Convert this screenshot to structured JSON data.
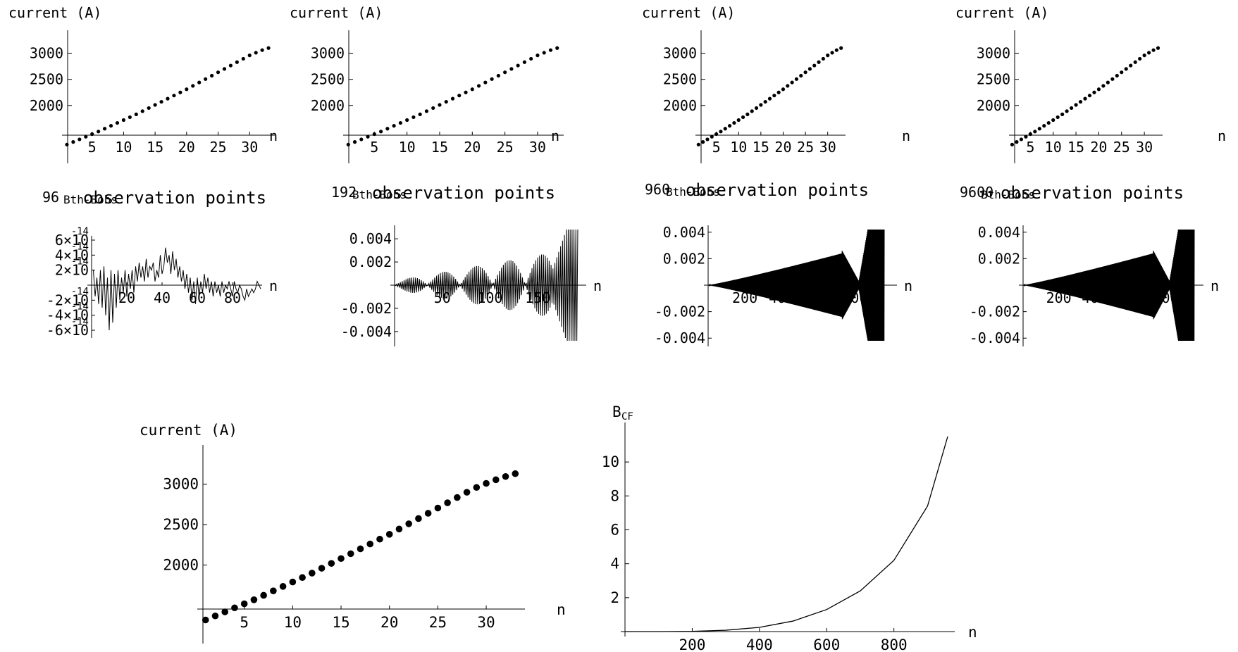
{
  "chart_data": [
    {
      "type": "scatter",
      "title": "",
      "ylabel": "current (A)",
      "xlabel": "n",
      "xticks": [
        "5",
        "10",
        "15",
        "20",
        "25",
        "30"
      ],
      "yticks": [
        "2000",
        "2500",
        "3000"
      ],
      "xlim": [
        0,
        34
      ],
      "ylim": [
        1220,
        3400
      ],
      "x": [
        1,
        2,
        3,
        4,
        5,
        6,
        7,
        8,
        9,
        10,
        11,
        12,
        13,
        14,
        15,
        16,
        17,
        18,
        19,
        20,
        21,
        22,
        23,
        24,
        25,
        26,
        27,
        28,
        29,
        30,
        31,
        32,
        33
      ],
      "y": [
        1250,
        1300,
        1350,
        1400,
        1450,
        1500,
        1555,
        1610,
        1665,
        1720,
        1775,
        1830,
        1890,
        1950,
        2010,
        2070,
        2130,
        2190,
        2250,
        2310,
        2375,
        2440,
        2505,
        2570,
        2635,
        2700,
        2765,
        2830,
        2895,
        2960,
        3010,
        3060,
        3100
      ]
    },
    {
      "type": "scatter",
      "title": "",
      "ylabel": "current (A)",
      "xlabel": "n",
      "xticks": [
        "5",
        "10",
        "15",
        "20",
        "25",
        "30"
      ],
      "yticks": [
        "2000",
        "2500",
        "3000"
      ],
      "xlim": [
        0,
        34
      ],
      "ylim": [
        1220,
        3400
      ],
      "x": [
        1,
        2,
        3,
        4,
        5,
        6,
        7,
        8,
        9,
        10,
        11,
        12,
        13,
        14,
        15,
        16,
        17,
        18,
        19,
        20,
        21,
        22,
        23,
        24,
        25,
        26,
        27,
        28,
        29,
        30,
        31,
        32,
        33
      ],
      "y": [
        1250,
        1300,
        1350,
        1400,
        1450,
        1500,
        1555,
        1610,
        1665,
        1720,
        1775,
        1830,
        1890,
        1950,
        2010,
        2070,
        2130,
        2190,
        2250,
        2310,
        2375,
        2440,
        2505,
        2570,
        2635,
        2700,
        2765,
        2830,
        2895,
        2960,
        3010,
        3060,
        3100
      ]
    },
    {
      "type": "scatter",
      "title": "",
      "ylabel": "current (A)",
      "xlabel": "n",
      "xticks": [
        "5",
        "10",
        "15",
        "20",
        "25",
        "30"
      ],
      "yticks": [
        "2000",
        "2500",
        "3000"
      ],
      "xlim": [
        0,
        34
      ],
      "ylim": [
        1220,
        3400
      ],
      "x": [
        1,
        2,
        3,
        4,
        5,
        6,
        7,
        8,
        9,
        10,
        11,
        12,
        13,
        14,
        15,
        16,
        17,
        18,
        19,
        20,
        21,
        22,
        23,
        24,
        25,
        26,
        27,
        28,
        29,
        30,
        31,
        32,
        33
      ],
      "y": [
        1250,
        1300,
        1350,
        1400,
        1450,
        1500,
        1555,
        1610,
        1665,
        1720,
        1775,
        1830,
        1890,
        1950,
        2010,
        2070,
        2130,
        2190,
        2250,
        2310,
        2375,
        2440,
        2505,
        2570,
        2635,
        2700,
        2765,
        2830,
        2895,
        2960,
        3010,
        3060,
        3100
      ]
    },
    {
      "type": "scatter",
      "title": "",
      "ylabel": "current (A)",
      "xlabel": "n",
      "xticks": [
        "5",
        "10",
        "15",
        "20",
        "25",
        "30"
      ],
      "yticks": [
        "2000",
        "2500",
        "3000"
      ],
      "xlim": [
        0,
        34
      ],
      "ylim": [
        1220,
        3400
      ],
      "x": [
        1,
        2,
        3,
        4,
        5,
        6,
        7,
        8,
        9,
        10,
        11,
        12,
        13,
        14,
        15,
        16,
        17,
        18,
        19,
        20,
        21,
        22,
        23,
        24,
        25,
        26,
        27,
        28,
        29,
        30,
        31,
        32,
        33
      ],
      "y": [
        1250,
        1300,
        1350,
        1400,
        1450,
        1500,
        1555,
        1610,
        1665,
        1720,
        1775,
        1830,
        1890,
        1950,
        2010,
        2070,
        2130,
        2190,
        2250,
        2310,
        2375,
        2440,
        2505,
        2570,
        2635,
        2700,
        2765,
        2830,
        2895,
        2960,
        3010,
        3060,
        3100
      ]
    },
    {
      "type": "line",
      "title": "observation points",
      "label_number": "96",
      "ylabel": "Bth-Bobs",
      "xlabel": "n",
      "xticks": [
        "20",
        "40",
        "60",
        "80"
      ],
      "yticks": [
        "6×10",
        "4×10",
        "2×10",
        "-2×10",
        "-4×10",
        "-6×10"
      ],
      "ytick_exponent": "-14",
      "xlim": [
        0,
        96
      ],
      "ylim": [
        -6e-14,
        6e-14
      ],
      "n_points": 96,
      "y": [
        2e-14,
        -1.5e-14,
        1e-14,
        -2.5e-14,
        2e-14,
        -3e-14,
        2.5e-14,
        -4e-14,
        1e-14,
        -6e-14,
        2e-14,
        -5e-14,
        1.5e-14,
        -3e-14,
        2e-14,
        -2e-14,
        1e-14,
        -1e-14,
        2e-14,
        -1.5e-14,
        1.5e-14,
        -5e-15,
        2e-14,
        -1e-14,
        2.5e-14,
        5e-15,
        3e-14,
        1e-14,
        2.5e-14,
        5e-15,
        3.5e-14,
        1e-14,
        2.5e-14,
        2e-14,
        3e-14,
        5e-15,
        2e-14,
        1e-14,
        4e-14,
        1.5e-14,
        2.5e-14,
        5e-14,
        3e-14,
        4e-14,
        1.5e-14,
        4.5e-14,
        2e-14,
        3.5e-14,
        1e-14,
        2.5e-14,
        5e-15,
        2e-14,
        -5e-15,
        1.5e-14,
        -1e-14,
        1e-14,
        -2e-14,
        5e-15,
        -2.5e-14,
        1e-14,
        -1.5e-14,
        5e-15,
        -1e-14,
        1.5e-14,
        -5e-15,
        1e-14,
        -1e-14,
        5e-15,
        -1.5e-14,
        5e-15,
        -1e-14,
        0.0,
        -1.5e-14,
        5e-15,
        -1e-14,
        0.0,
        -5e-15,
        5e-15,
        -5e-15,
        -1.5e-14,
        5e-15,
        -5e-15,
        -1e-14,
        0.0,
        -5e-15,
        -1.5e-14,
        -2e-14,
        -5e-15,
        -1.5e-14,
        -1e-14,
        -5e-15,
        -1e-14,
        -5e-15,
        5e-15,
        0.0,
        -5e-15
      ]
    },
    {
      "type": "line",
      "title": "observation points",
      "label_number": "192",
      "ylabel": "Bth-Bobs",
      "xlabel": "n",
      "xticks": [
        "50",
        "100",
        "150"
      ],
      "yticks": [
        "0.004",
        "0.002",
        "-0.002",
        "-0.004"
      ],
      "xlim": [
        0,
        192
      ],
      "ylim": [
        -0.0048,
        0.0048
      ],
      "n_points": 192,
      "envelope": "beating oscillation with growing amplitude, max ≈0.0048 near n≈180"
    },
    {
      "type": "line",
      "title": "observation points",
      "label_number": "960",
      "ylabel": "Bth-Bobs",
      "xlabel": "n",
      "xticks": [
        "200",
        "400",
        "600",
        "800"
      ],
      "yticks": [
        "0.004",
        "0.002",
        "-0.002",
        "-0.004"
      ],
      "xlim": [
        0,
        960
      ],
      "ylim": [
        -0.0042,
        0.0042
      ],
      "n_points": 960,
      "envelope": "amplitude grows to ≈0.0024 near n≈730, dips near n≈820, then reaches ≈0.0042 near n≈900"
    },
    {
      "type": "line",
      "title": "observation points",
      "label_number": "9600",
      "ylabel": "Bth-Bobs",
      "xlabel": "n",
      "xticks": [
        "200",
        "400",
        "600",
        "800"
      ],
      "yticks": [
        "0.004",
        "0.002",
        "-0.002",
        "-0.004"
      ],
      "xlim": [
        0,
        960
      ],
      "ylim": [
        -0.0042,
        0.0042
      ],
      "envelope": "amplitude grows to ≈0.0024 near n≈730, dips near n≈820, then reaches ≈0.0042 near n≈900"
    },
    {
      "type": "scatter",
      "title": "",
      "ylabel": "current (A)",
      "xlabel": "n",
      "xticks": [
        "5",
        "10",
        "15",
        "20",
        "25",
        "30"
      ],
      "yticks": [
        "2000",
        "2500",
        "3000"
      ],
      "xlim": [
        0,
        34
      ],
      "ylim": [
        1250,
        3450
      ],
      "x": [
        1,
        2,
        3,
        4,
        5,
        6,
        7,
        8,
        9,
        10,
        11,
        12,
        13,
        14,
        15,
        16,
        17,
        18,
        19,
        20,
        21,
        22,
        23,
        24,
        25,
        26,
        27,
        28,
        29,
        30,
        31,
        32,
        33
      ],
      "y": [
        1320,
        1370,
        1420,
        1470,
        1520,
        1570,
        1625,
        1680,
        1735,
        1790,
        1845,
        1900,
        1960,
        2020,
        2080,
        2140,
        2200,
        2260,
        2320,
        2380,
        2445,
        2510,
        2575,
        2640,
        2705,
        2770,
        2835,
        2900,
        2960,
        3010,
        3055,
        3095,
        3130
      ]
    },
    {
      "type": "line",
      "title": "",
      "ylabel": "BCF",
      "xlabel": "n",
      "xticks": [
        "200",
        "400",
        "600",
        "800"
      ],
      "yticks": [
        "2",
        "4",
        "6",
        "8",
        "10"
      ],
      "xlim": [
        0,
        960
      ],
      "ylim": [
        0,
        11.5
      ],
      "x": [
        0,
        100,
        200,
        300,
        400,
        500,
        600,
        700,
        800,
        900,
        960
      ],
      "y": [
        0,
        0.0001,
        0.015,
        0.08,
        0.25,
        0.62,
        1.3,
        2.4,
        4.2,
        7.4,
        11.5
      ]
    }
  ]
}
